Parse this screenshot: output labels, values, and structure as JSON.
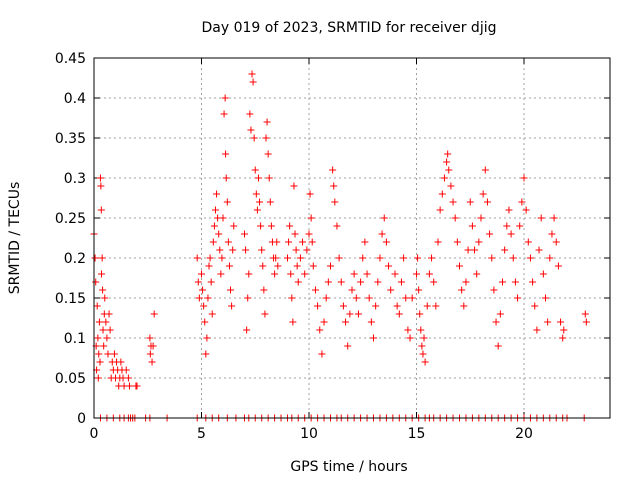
{
  "chart_data": {
    "type": "scatter",
    "title": "Day 019 of 2023, SRMTID for receiver djig",
    "xlabel": "GPS time / hours",
    "ylabel": "SRMTID / TECUs",
    "xlim": [
      0,
      24
    ],
    "ylim": [
      0,
      0.45
    ],
    "x_ticks": [
      0,
      5,
      10,
      15,
      20
    ],
    "x_tick_labels": [
      "0",
      "5",
      "10",
      "15",
      "20"
    ],
    "y_ticks": [
      0,
      0.05,
      0.1,
      0.15,
      0.2,
      0.25,
      0.3,
      0.35,
      0.4,
      0.45
    ],
    "y_tick_labels": [
      "0",
      "0.05",
      "0.1",
      "0.15",
      "0.2",
      "0.25",
      "0.3",
      "0.35",
      "0.4",
      "0.45"
    ],
    "grid": true,
    "marker": "plus",
    "colors": {
      "series": "#ff0000",
      "axes": "#000000",
      "grid": "#a0a0a0"
    },
    "series": [
      {
        "name": "SRMTID",
        "points": [
          [
            0.0,
            0.23
          ],
          [
            0.05,
            0.2
          ],
          [
            0.08,
            0.17
          ],
          [
            0.1,
            0.09
          ],
          [
            0.12,
            0.06
          ],
          [
            0.15,
            0.14
          ],
          [
            0.18,
            0.1
          ],
          [
            0.2,
            0.05
          ],
          [
            0.22,
            0.08
          ],
          [
            0.25,
            0.12
          ],
          [
            0.28,
            0.07
          ],
          [
            0.3,
            0.3
          ],
          [
            0.32,
            0.29
          ],
          [
            0.34,
            0.26
          ],
          [
            0.35,
            0.18
          ],
          [
            0.38,
            0.2
          ],
          [
            0.4,
            0.16
          ],
          [
            0.42,
            0.11
          ],
          [
            0.45,
            0.09
          ],
          [
            0.48,
            0.13
          ],
          [
            0.5,
            0.15
          ],
          [
            0.55,
            0.12
          ],
          [
            0.6,
            0.1
          ],
          [
            0.65,
            0.08
          ],
          [
            0.7,
            0.13
          ],
          [
            0.75,
            0.11
          ],
          [
            0.8,
            0.05
          ],
          [
            0.85,
            0.07
          ],
          [
            0.9,
            0.06
          ],
          [
            0.95,
            0.08
          ],
          [
            1.0,
            0.05
          ],
          [
            1.05,
            0.07
          ],
          [
            1.1,
            0.06
          ],
          [
            1.15,
            0.04
          ],
          [
            1.2,
            0.05
          ],
          [
            1.25,
            0.07
          ],
          [
            1.3,
            0.06
          ],
          [
            1.35,
            0.05
          ],
          [
            1.4,
            0.04
          ],
          [
            1.5,
            0.06
          ],
          [
            1.6,
            0.05
          ],
          [
            1.65,
            0.04
          ],
          [
            1.95,
            0.04
          ],
          [
            2.0,
            0.04
          ],
          [
            2.6,
            0.1
          ],
          [
            2.62,
            0.08
          ],
          [
            2.65,
            0.09
          ],
          [
            2.7,
            0.07
          ],
          [
            2.75,
            0.09
          ],
          [
            2.8,
            0.13
          ],
          [
            4.8,
            0.2
          ],
          [
            4.85,
            0.17
          ],
          [
            4.9,
            0.15
          ],
          [
            5.0,
            0.18
          ],
          [
            5.05,
            0.16
          ],
          [
            5.1,
            0.14
          ],
          [
            5.15,
            0.12
          ],
          [
            5.2,
            0.08
          ],
          [
            5.25,
            0.1
          ],
          [
            5.3,
            0.15
          ],
          [
            5.35,
            0.19
          ],
          [
            5.4,
            0.2
          ],
          [
            5.45,
            0.17
          ],
          [
            5.5,
            0.13
          ],
          [
            5.55,
            0.22
          ],
          [
            5.6,
            0.24
          ],
          [
            5.65,
            0.26
          ],
          [
            5.7,
            0.28
          ],
          [
            5.75,
            0.25
          ],
          [
            5.8,
            0.23
          ],
          [
            5.85,
            0.21
          ],
          [
            5.9,
            0.18
          ],
          [
            5.95,
            0.2
          ],
          [
            6.0,
            0.25
          ],
          [
            6.05,
            0.38
          ],
          [
            6.1,
            0.4
          ],
          [
            6.12,
            0.33
          ],
          [
            6.15,
            0.3
          ],
          [
            6.2,
            0.27
          ],
          [
            6.25,
            0.22
          ],
          [
            6.3,
            0.19
          ],
          [
            6.35,
            0.16
          ],
          [
            6.4,
            0.14
          ],
          [
            6.45,
            0.21
          ],
          [
            6.5,
            0.24
          ],
          [
            7.0,
            0.23
          ],
          [
            7.05,
            0.21
          ],
          [
            7.1,
            0.11
          ],
          [
            7.15,
            0.15
          ],
          [
            7.2,
            0.18
          ],
          [
            7.25,
            0.38
          ],
          [
            7.3,
            0.36
          ],
          [
            7.35,
            0.43
          ],
          [
            7.4,
            0.42
          ],
          [
            7.45,
            0.35
          ],
          [
            7.5,
            0.31
          ],
          [
            7.55,
            0.28
          ],
          [
            7.6,
            0.26
          ],
          [
            7.65,
            0.3
          ],
          [
            7.7,
            0.27
          ],
          [
            7.75,
            0.24
          ],
          [
            7.8,
            0.21
          ],
          [
            7.85,
            0.19
          ],
          [
            7.9,
            0.16
          ],
          [
            7.95,
            0.13
          ],
          [
            8.0,
            0.35
          ],
          [
            8.05,
            0.37
          ],
          [
            8.1,
            0.33
          ],
          [
            8.15,
            0.3
          ],
          [
            8.2,
            0.27
          ],
          [
            8.25,
            0.24
          ],
          [
            8.3,
            0.22
          ],
          [
            8.35,
            0.2
          ],
          [
            8.4,
            0.18
          ],
          [
            8.45,
            0.2
          ],
          [
            8.5,
            0.22
          ],
          [
            8.55,
            0.19
          ],
          [
            9.0,
            0.2
          ],
          [
            9.05,
            0.22
          ],
          [
            9.1,
            0.24
          ],
          [
            9.15,
            0.18
          ],
          [
            9.2,
            0.15
          ],
          [
            9.25,
            0.12
          ],
          [
            9.3,
            0.29
          ],
          [
            9.35,
            0.23
          ],
          [
            9.4,
            0.21
          ],
          [
            9.45,
            0.19
          ],
          [
            9.5,
            0.17
          ],
          [
            9.6,
            0.2
          ],
          [
            9.7,
            0.22
          ],
          [
            9.8,
            0.18
          ],
          [
            9.9,
            0.21
          ],
          [
            10.0,
            0.23
          ],
          [
            10.05,
            0.28
          ],
          [
            10.1,
            0.25
          ],
          [
            10.15,
            0.22
          ],
          [
            10.2,
            0.19
          ],
          [
            10.3,
            0.16
          ],
          [
            10.4,
            0.14
          ],
          [
            10.5,
            0.11
          ],
          [
            10.6,
            0.08
          ],
          [
            10.7,
            0.12
          ],
          [
            10.8,
            0.15
          ],
          [
            10.9,
            0.17
          ],
          [
            11.0,
            0.19
          ],
          [
            11.1,
            0.31
          ],
          [
            11.15,
            0.29
          ],
          [
            11.2,
            0.27
          ],
          [
            11.3,
            0.24
          ],
          [
            11.4,
            0.2
          ],
          [
            11.5,
            0.17
          ],
          [
            11.6,
            0.14
          ],
          [
            11.7,
            0.12
          ],
          [
            11.8,
            0.09
          ],
          [
            11.9,
            0.13
          ],
          [
            12.0,
            0.16
          ],
          [
            12.1,
            0.18
          ],
          [
            12.2,
            0.15
          ],
          [
            12.3,
            0.13
          ],
          [
            12.4,
            0.17
          ],
          [
            12.5,
            0.2
          ],
          [
            12.6,
            0.22
          ],
          [
            12.7,
            0.18
          ],
          [
            12.8,
            0.15
          ],
          [
            12.9,
            0.12
          ],
          [
            13.0,
            0.1
          ],
          [
            13.1,
            0.14
          ],
          [
            13.2,
            0.17
          ],
          [
            13.3,
            0.2
          ],
          [
            13.4,
            0.23
          ],
          [
            13.5,
            0.25
          ],
          [
            13.6,
            0.22
          ],
          [
            13.7,
            0.19
          ],
          [
            13.8,
            0.16
          ],
          [
            14.0,
            0.18
          ],
          [
            14.1,
            0.14
          ],
          [
            14.2,
            0.13
          ],
          [
            14.3,
            0.17
          ],
          [
            14.4,
            0.2
          ],
          [
            14.5,
            0.15
          ],
          [
            14.6,
            0.11
          ],
          [
            14.7,
            0.1
          ],
          [
            14.8,
            0.15
          ],
          [
            15.0,
            0.18
          ],
          [
            15.05,
            0.2
          ],
          [
            15.1,
            0.16
          ],
          [
            15.15,
            0.13
          ],
          [
            15.2,
            0.11
          ],
          [
            15.25,
            0.09
          ],
          [
            15.3,
            0.08
          ],
          [
            15.35,
            0.1
          ],
          [
            15.4,
            0.07
          ],
          [
            15.5,
            0.14
          ],
          [
            15.6,
            0.18
          ],
          [
            15.7,
            0.2
          ],
          [
            15.8,
            0.17
          ],
          [
            15.9,
            0.14
          ],
          [
            16.0,
            0.22
          ],
          [
            16.1,
            0.26
          ],
          [
            16.2,
            0.28
          ],
          [
            16.3,
            0.3
          ],
          [
            16.4,
            0.32
          ],
          [
            16.45,
            0.33
          ],
          [
            16.5,
            0.31
          ],
          [
            16.6,
            0.29
          ],
          [
            16.7,
            0.27
          ],
          [
            16.8,
            0.25
          ],
          [
            16.9,
            0.22
          ],
          [
            17.0,
            0.19
          ],
          [
            17.1,
            0.16
          ],
          [
            17.2,
            0.14
          ],
          [
            17.3,
            0.17
          ],
          [
            17.4,
            0.21
          ],
          [
            17.5,
            0.27
          ],
          [
            17.6,
            0.24
          ],
          [
            17.7,
            0.21
          ],
          [
            17.8,
            0.18
          ],
          [
            17.9,
            0.22
          ],
          [
            18.0,
            0.25
          ],
          [
            18.1,
            0.28
          ],
          [
            18.2,
            0.31
          ],
          [
            18.3,
            0.27
          ],
          [
            18.4,
            0.23
          ],
          [
            18.5,
            0.2
          ],
          [
            18.6,
            0.16
          ],
          [
            18.7,
            0.12
          ],
          [
            18.8,
            0.09
          ],
          [
            18.9,
            0.13
          ],
          [
            19.0,
            0.17
          ],
          [
            19.1,
            0.21
          ],
          [
            19.2,
            0.24
          ],
          [
            19.3,
            0.26
          ],
          [
            19.4,
            0.23
          ],
          [
            19.5,
            0.2
          ],
          [
            19.6,
            0.17
          ],
          [
            19.7,
            0.15
          ],
          [
            19.8,
            0.24
          ],
          [
            19.9,
            0.27
          ],
          [
            20.0,
            0.3
          ],
          [
            20.1,
            0.26
          ],
          [
            20.2,
            0.22
          ],
          [
            20.3,
            0.2
          ],
          [
            20.4,
            0.17
          ],
          [
            20.5,
            0.14
          ],
          [
            20.6,
            0.11
          ],
          [
            20.7,
            0.21
          ],
          [
            20.8,
            0.25
          ],
          [
            20.9,
            0.18
          ],
          [
            21.0,
            0.15
          ],
          [
            21.1,
            0.12
          ],
          [
            21.2,
            0.2
          ],
          [
            21.3,
            0.23
          ],
          [
            21.4,
            0.25
          ],
          [
            21.5,
            0.22
          ],
          [
            21.6,
            0.19
          ],
          [
            21.7,
            0.12
          ],
          [
            21.8,
            0.1
          ],
          [
            21.85,
            0.11
          ],
          [
            22.85,
            0.13
          ],
          [
            22.9,
            0.12
          ]
        ]
      }
    ],
    "zero_markers_x": [
      0.3,
      0.6,
      0.9,
      1.2,
      1.4,
      1.6,
      1.7,
      1.8,
      1.9,
      2.4,
      2.6,
      3.4,
      4.8,
      5.2,
      5.5,
      5.8,
      6.2,
      6.6,
      7.0,
      7.2,
      7.5,
      7.8,
      8.1,
      8.4,
      8.7,
      9.0,
      9.2,
      9.5,
      9.8,
      10.1,
      10.4,
      10.7,
      11.0,
      11.3,
      11.5,
      11.8,
      12.1,
      12.4,
      12.7,
      13.0,
      13.3,
      13.6,
      13.9,
      14.2,
      14.5,
      14.8,
      15.1,
      15.4,
      15.6,
      15.8,
      16.1,
      16.4,
      16.7,
      17.0,
      17.3,
      17.6,
      17.9,
      18.2,
      18.5,
      18.8,
      19.1,
      19.4,
      19.7,
      20.0,
      20.3,
      20.6,
      20.9,
      21.2,
      21.5,
      21.8,
      22.0,
      22.8
    ]
  }
}
